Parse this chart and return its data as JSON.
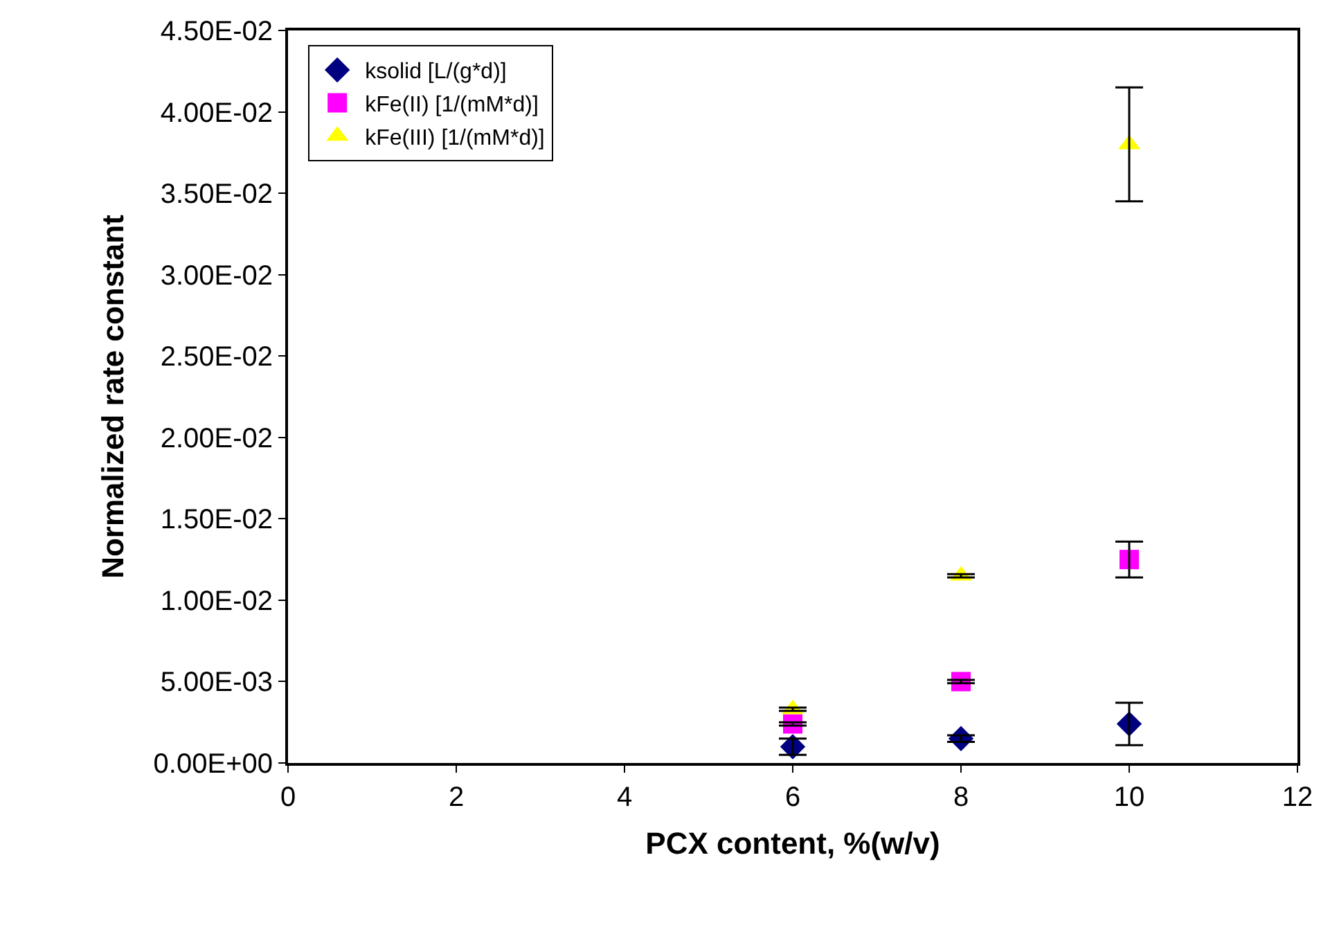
{
  "chart_data": {
    "type": "scatter",
    "xlabel": "PCX content, %(w/v)",
    "ylabel": "Normalized rate constant",
    "x": [
      6,
      8,
      10
    ],
    "series": [
      {
        "name": "ksolid [L/(g*d)]",
        "color": "#000080",
        "marker": "diamond",
        "values": [
          0.001,
          0.0015,
          0.0024
        ],
        "errors": [
          0.0005,
          0.0002,
          0.0013
        ]
      },
      {
        "name": "kFe(II) [1/(mM*d)]",
        "color": "#ff00ff",
        "marker": "square",
        "values": [
          0.0024,
          0.005,
          0.0125
        ],
        "errors": [
          0.0001,
          0.0001,
          0.0011
        ]
      },
      {
        "name": "kFe(III) [1/(mM*d)]",
        "color": "#ffff00",
        "marker": "triangle",
        "values": [
          0.0033,
          0.0115,
          0.038
        ],
        "errors": [
          0.0001,
          0.0001,
          0.0035
        ]
      }
    ],
    "xlim": [
      0,
      12
    ],
    "xticks": [
      0,
      2,
      4,
      6,
      8,
      10,
      12
    ],
    "ylim": [
      0,
      0.045
    ],
    "yticks": [
      {
        "value": 0,
        "label": "0.00E+00"
      },
      {
        "value": 0.005,
        "label": "5.00E-03"
      },
      {
        "value": 0.01,
        "label": "1.00E-02"
      },
      {
        "value": 0.015,
        "label": "1.50E-02"
      },
      {
        "value": 0.02,
        "label": "2.00E-02"
      },
      {
        "value": 0.025,
        "label": "2.50E-02"
      },
      {
        "value": 0.03,
        "label": "3.00E-02"
      },
      {
        "value": 0.035,
        "label": "3.50E-02"
      },
      {
        "value": 0.04,
        "label": "4.00E-02"
      },
      {
        "value": 0.045,
        "label": "4.50E-02"
      }
    ],
    "grid": false,
    "legend": "top left"
  }
}
